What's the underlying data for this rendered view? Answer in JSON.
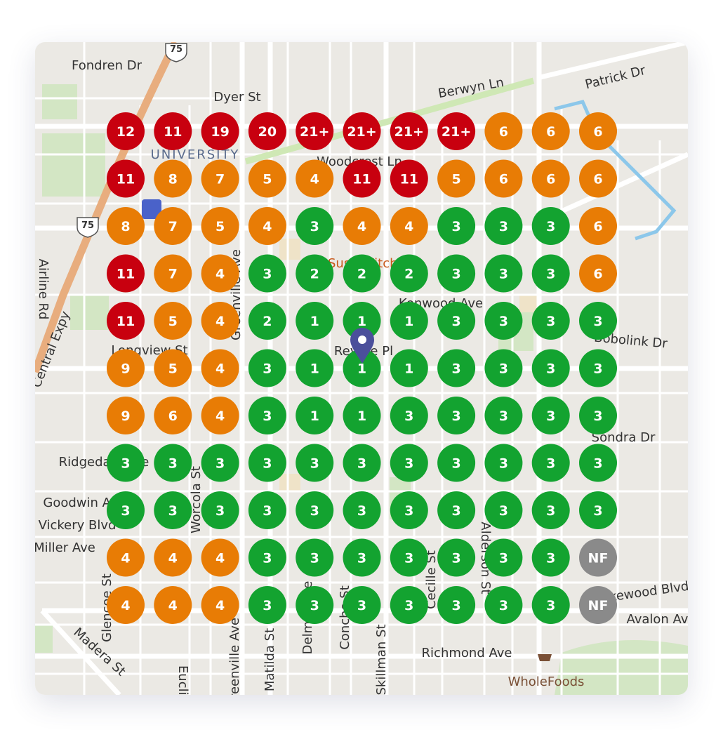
{
  "map": {
    "labels": [
      "Fondren Dr",
      "Dyer St",
      "Berwyn Ln",
      "Patrick Dr",
      "UNIVERSITY",
      "Woodcrest Ln",
      "Airline Rd",
      "Central Expy",
      "Greenville Ave",
      "Sushi Kitchen",
      "Kenwood Ave",
      "Longview St",
      "Revere Pl",
      "Bobolink Dr",
      "Sondra Dr",
      "Ridgedale Ave",
      "Worcola St",
      "Goodwin Ave",
      "Vickery Blvd",
      "Miller Ave",
      "Alderson St",
      "Cecille St",
      "Glencoe St",
      "Matilda St",
      "Delmar Ave",
      "Concho St",
      "Skillman St",
      "Richmond Ave",
      "Greenville Ave",
      "Madera St",
      "Euclid",
      "Lakewood Blvd",
      "Avalon Ave",
      "WholeFoods",
      "75",
      "75"
    ]
  },
  "grid": {
    "rows": [
      [
        {
          "label": "12",
          "color": "#c8000f"
        },
        {
          "label": "11",
          "color": "#c8000f"
        },
        {
          "label": "19",
          "color": "#c8000f"
        },
        {
          "label": "20",
          "color": "#c8000f"
        },
        {
          "label": "21+",
          "color": "#c8000f"
        },
        {
          "label": "21+",
          "color": "#c8000f"
        },
        {
          "label": "21+",
          "color": "#c8000f"
        },
        {
          "label": "21+",
          "color": "#c8000f"
        },
        {
          "label": "6",
          "color": "#e87c05"
        },
        {
          "label": "6",
          "color": "#e87c05"
        },
        {
          "label": "6",
          "color": "#e87c05"
        }
      ],
      [
        {
          "label": "11",
          "color": "#c8000f"
        },
        {
          "label": "8",
          "color": "#e87c05"
        },
        {
          "label": "7",
          "color": "#e87c05"
        },
        {
          "label": "5",
          "color": "#e87c05"
        },
        {
          "label": "4",
          "color": "#e87c05"
        },
        {
          "label": "11",
          "color": "#c8000f"
        },
        {
          "label": "11",
          "color": "#c8000f"
        },
        {
          "label": "5",
          "color": "#e87c05"
        },
        {
          "label": "6",
          "color": "#e87c05"
        },
        {
          "label": "6",
          "color": "#e87c05"
        },
        {
          "label": "6",
          "color": "#e87c05"
        }
      ],
      [
        {
          "label": "8",
          "color": "#e87c05"
        },
        {
          "label": "7",
          "color": "#e87c05"
        },
        {
          "label": "5",
          "color": "#e87c05"
        },
        {
          "label": "4",
          "color": "#e87c05"
        },
        {
          "label": "3",
          "color": "#13a330"
        },
        {
          "label": "4",
          "color": "#e87c05"
        },
        {
          "label": "4",
          "color": "#e87c05"
        },
        {
          "label": "3",
          "color": "#13a330"
        },
        {
          "label": "3",
          "color": "#13a330"
        },
        {
          "label": "3",
          "color": "#13a330"
        },
        {
          "label": "6",
          "color": "#e87c05"
        }
      ],
      [
        {
          "label": "11",
          "color": "#c8000f"
        },
        {
          "label": "7",
          "color": "#e87c05"
        },
        {
          "label": "4",
          "color": "#e87c05"
        },
        {
          "label": "3",
          "color": "#13a330"
        },
        {
          "label": "2",
          "color": "#13a330"
        },
        {
          "label": "2",
          "color": "#13a330"
        },
        {
          "label": "2",
          "color": "#13a330"
        },
        {
          "label": "3",
          "color": "#13a330"
        },
        {
          "label": "3",
          "color": "#13a330"
        },
        {
          "label": "3",
          "color": "#13a330"
        },
        {
          "label": "6",
          "color": "#e87c05"
        }
      ],
      [
        {
          "label": "11",
          "color": "#c8000f"
        },
        {
          "label": "5",
          "color": "#e87c05"
        },
        {
          "label": "4",
          "color": "#e87c05"
        },
        {
          "label": "2",
          "color": "#13a330"
        },
        {
          "label": "1",
          "color": "#13a330"
        },
        {
          "label": "1",
          "color": "#13a330"
        },
        {
          "label": "1",
          "color": "#13a330"
        },
        {
          "label": "3",
          "color": "#13a330"
        },
        {
          "label": "3",
          "color": "#13a330"
        },
        {
          "label": "3",
          "color": "#13a330"
        },
        {
          "label": "3",
          "color": "#13a330"
        }
      ],
      [
        {
          "label": "9",
          "color": "#e87c05"
        },
        {
          "label": "5",
          "color": "#e87c05"
        },
        {
          "label": "4",
          "color": "#e87c05"
        },
        {
          "label": "3",
          "color": "#13a330"
        },
        {
          "label": "1",
          "color": "#13a330"
        },
        {
          "label": "1",
          "color": "#13a330"
        },
        {
          "label": "1",
          "color": "#13a330"
        },
        {
          "label": "3",
          "color": "#13a330"
        },
        {
          "label": "3",
          "color": "#13a330"
        },
        {
          "label": "3",
          "color": "#13a330"
        },
        {
          "label": "3",
          "color": "#13a330"
        }
      ],
      [
        {
          "label": "9",
          "color": "#e87c05"
        },
        {
          "label": "6",
          "color": "#e87c05"
        },
        {
          "label": "4",
          "color": "#e87c05"
        },
        {
          "label": "3",
          "color": "#13a330"
        },
        {
          "label": "1",
          "color": "#13a330"
        },
        {
          "label": "1",
          "color": "#13a330"
        },
        {
          "label": "3",
          "color": "#13a330"
        },
        {
          "label": "3",
          "color": "#13a330"
        },
        {
          "label": "3",
          "color": "#13a330"
        },
        {
          "label": "3",
          "color": "#13a330"
        },
        {
          "label": "3",
          "color": "#13a330"
        }
      ],
      [
        {
          "label": "3",
          "color": "#13a330"
        },
        {
          "label": "3",
          "color": "#13a330"
        },
        {
          "label": "3",
          "color": "#13a330"
        },
        {
          "label": "3",
          "color": "#13a330"
        },
        {
          "label": "3",
          "color": "#13a330"
        },
        {
          "label": "3",
          "color": "#13a330"
        },
        {
          "label": "3",
          "color": "#13a330"
        },
        {
          "label": "3",
          "color": "#13a330"
        },
        {
          "label": "3",
          "color": "#13a330"
        },
        {
          "label": "3",
          "color": "#13a330"
        },
        {
          "label": "3",
          "color": "#13a330"
        }
      ],
      [
        {
          "label": "3",
          "color": "#13a330"
        },
        {
          "label": "3",
          "color": "#13a330"
        },
        {
          "label": "3",
          "color": "#13a330"
        },
        {
          "label": "3",
          "color": "#13a330"
        },
        {
          "label": "3",
          "color": "#13a330"
        },
        {
          "label": "3",
          "color": "#13a330"
        },
        {
          "label": "3",
          "color": "#13a330"
        },
        {
          "label": "3",
          "color": "#13a330"
        },
        {
          "label": "3",
          "color": "#13a330"
        },
        {
          "label": "3",
          "color": "#13a330"
        },
        {
          "label": "3",
          "color": "#13a330"
        }
      ],
      [
        {
          "label": "4",
          "color": "#e87c05"
        },
        {
          "label": "4",
          "color": "#e87c05"
        },
        {
          "label": "4",
          "color": "#e87c05"
        },
        {
          "label": "3",
          "color": "#13a330"
        },
        {
          "label": "3",
          "color": "#13a330"
        },
        {
          "label": "3",
          "color": "#13a330"
        },
        {
          "label": "3",
          "color": "#13a330"
        },
        {
          "label": "3",
          "color": "#13a330"
        },
        {
          "label": "3",
          "color": "#13a330"
        },
        {
          "label": "3",
          "color": "#13a330"
        },
        {
          "label": "NF",
          "color": "#8a8a8a"
        }
      ],
      [
        {
          "label": "4",
          "color": "#e87c05"
        },
        {
          "label": "4",
          "color": "#e87c05"
        },
        {
          "label": "4",
          "color": "#e87c05"
        },
        {
          "label": "3",
          "color": "#13a330"
        },
        {
          "label": "3",
          "color": "#13a330"
        },
        {
          "label": "3",
          "color": "#13a330"
        },
        {
          "label": "3",
          "color": "#13a330"
        },
        {
          "label": "3",
          "color": "#13a330"
        },
        {
          "label": "3",
          "color": "#13a330"
        },
        {
          "label": "3",
          "color": "#13a330"
        },
        {
          "label": "NF",
          "color": "#8a8a8a"
        }
      ]
    ]
  }
}
